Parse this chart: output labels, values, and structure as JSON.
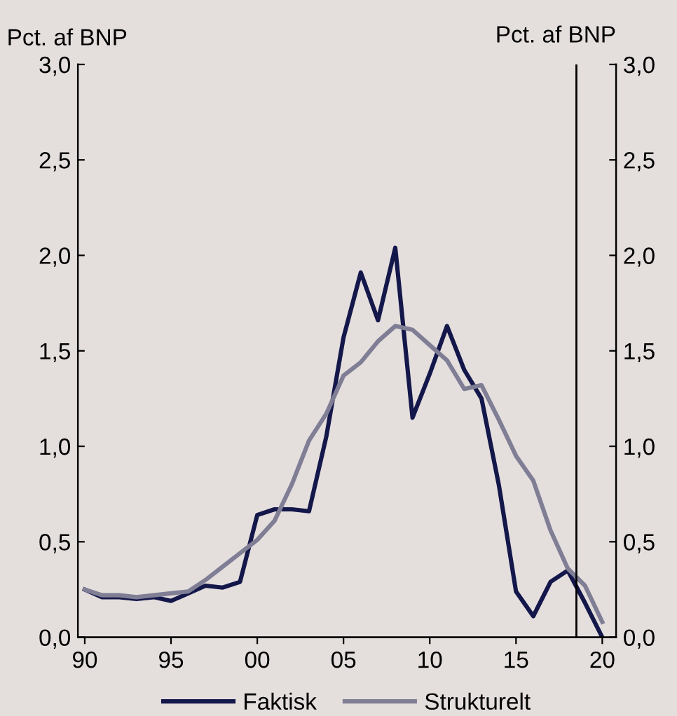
{
  "chart_data": {
    "type": "line",
    "ylabel": "Pct. af BNP",
    "y2label": "Pct. af BNP",
    "x": [
      1990,
      1991,
      1992,
      1993,
      1994,
      1995,
      1996,
      1997,
      1998,
      1999,
      2000,
      2001,
      2002,
      2003,
      2004,
      2005,
      2006,
      2007,
      2008,
      2009,
      2010,
      2011,
      2012,
      2013,
      2014,
      2015,
      2016,
      2017,
      2018,
      2019,
      2020
    ],
    "series": [
      {
        "name": "Faktisk",
        "color": "#14174a",
        "values": [
          0.25,
          0.21,
          0.21,
          0.2,
          0.21,
          0.19,
          0.23,
          0.27,
          0.26,
          0.29,
          0.64,
          0.67,
          0.67,
          0.66,
          1.05,
          1.57,
          1.91,
          1.66,
          2.04,
          1.15,
          1.38,
          1.63,
          1.4,
          1.25,
          0.8,
          0.24,
          0.11,
          0.29,
          0.35,
          0.18,
          0.0
        ]
      },
      {
        "name": "Strukturelt",
        "color": "#7f7e95",
        "values": [
          0.25,
          0.22,
          0.22,
          0.21,
          0.22,
          0.23,
          0.24,
          0.3,
          0.37,
          0.44,
          0.51,
          0.61,
          0.8,
          1.03,
          1.17,
          1.37,
          1.44,
          1.55,
          1.63,
          1.61,
          1.53,
          1.45,
          1.3,
          1.32,
          1.14,
          0.95,
          0.82,
          0.56,
          0.36,
          0.27,
          0.08
        ]
      }
    ],
    "xlim": [
      1989.6,
      2020.8
    ],
    "xticks": [
      {
        "value": 1990,
        "label": "90"
      },
      {
        "value": 1995,
        "label": "95"
      },
      {
        "value": 2000,
        "label": "00"
      },
      {
        "value": 2005,
        "label": "05"
      },
      {
        "value": 2010,
        "label": "10"
      },
      {
        "value": 2015,
        "label": "15"
      },
      {
        "value": 2020,
        "label": "20"
      }
    ],
    "ylim": [
      0,
      3
    ],
    "yticks": [
      {
        "value": 0,
        "label": "0,0"
      },
      {
        "value": 0.5,
        "label": "0,5"
      },
      {
        "value": 1,
        "label": "1,0"
      },
      {
        "value": 1.5,
        "label": "1,5"
      },
      {
        "value": 2,
        "label": "2,0"
      },
      {
        "value": 2.5,
        "label": "2,5"
      },
      {
        "value": 3,
        "label": "3,0"
      }
    ],
    "y2lim": [
      0,
      3
    ],
    "y2ticks": [
      {
        "value": 0,
        "label": "0,0"
      },
      {
        "value": 0.5,
        "label": "0,5"
      },
      {
        "value": 1,
        "label": "1,0"
      },
      {
        "value": 1.5,
        "label": "1,5"
      },
      {
        "value": 2,
        "label": "2,0"
      },
      {
        "value": 2.5,
        "label": "2,5"
      },
      {
        "value": 3,
        "label": "3,0"
      }
    ],
    "ref_lines": [
      {
        "axis": "x",
        "value": 2018.5,
        "color": "#000000"
      }
    ],
    "grid": false,
    "legend": "bottom"
  }
}
